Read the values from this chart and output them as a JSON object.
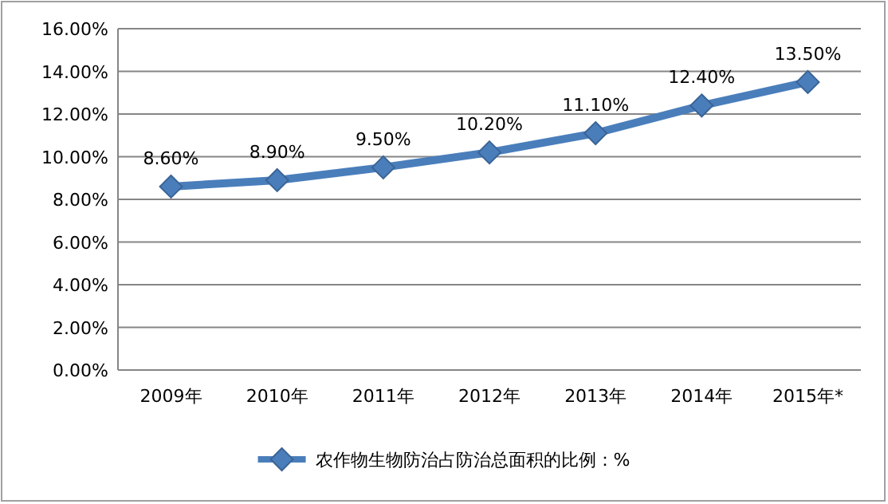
{
  "chart_data": {
    "type": "line",
    "categories": [
      "2009年",
      "2010年",
      "2011年",
      "2012年",
      "2013年",
      "2014年",
      "2015年*"
    ],
    "series": [
      {
        "name": "农作物生物防治占防治总面积的比例：%",
        "color": "#4a7ebb",
        "values": [
          8.6,
          8.9,
          9.5,
          10.2,
          11.1,
          12.4,
          13.5
        ],
        "value_labels": [
          "8.60%",
          "8.90%",
          "9.50%",
          "10.20%",
          "11.10%",
          "12.40%",
          "13.50%"
        ]
      }
    ],
    "ylim": [
      0,
      16
    ],
    "yticks": [
      {
        "value": 0,
        "label": "0.00%"
      },
      {
        "value": 2,
        "label": "2.00%"
      },
      {
        "value": 4,
        "label": "4.00%"
      },
      {
        "value": 6,
        "label": "6.00%"
      },
      {
        "value": 8,
        "label": "8.00%"
      },
      {
        "value": 10,
        "label": "10.00%"
      },
      {
        "value": 12,
        "label": "12.00%"
      },
      {
        "value": 14,
        "label": "14.00%"
      },
      {
        "value": 16,
        "label": "16.00%"
      }
    ],
    "grid": "y",
    "legend": "bottom",
    "marker": "diamond",
    "line_style": "solid"
  }
}
